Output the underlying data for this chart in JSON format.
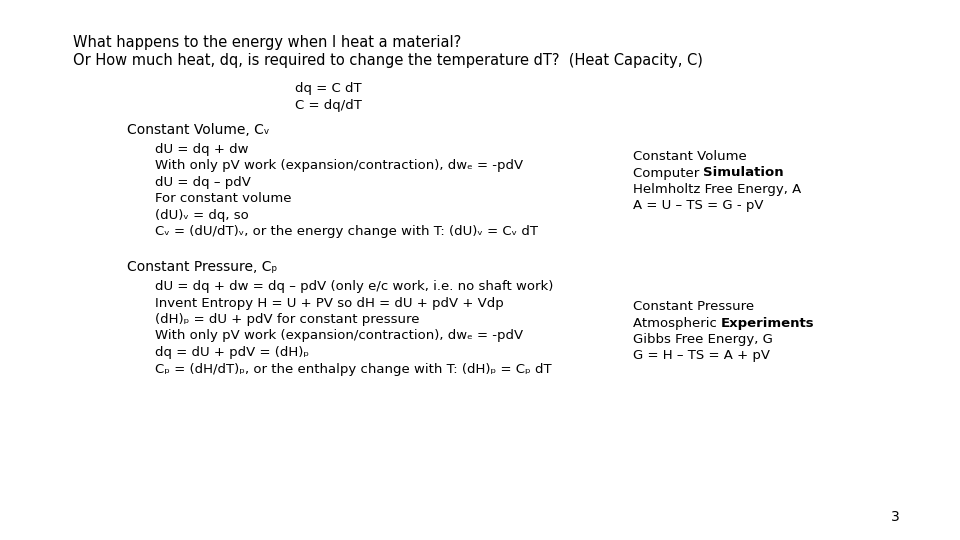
{
  "bg_color": "#ffffff",
  "title_line1": "What happens to the energy when I heat a material?",
  "title_line2": "Or How much heat, dq, is required to change the temperature dT?  (Heat Capacity, C)",
  "center_eq1": "dq = C dT",
  "center_eq2": "C = dq/dT",
  "cv_header": "Constant Volume, Cᵥ",
  "cv_lines": [
    "dU = dq + dw",
    "With only pV work (expansion/contraction), dwₑ⁣ = -pdV",
    "dU = dq – pdV",
    "For constant volume",
    "(dU)ᵥ = dq, so",
    "Cᵥ = (dU/dT)ᵥ, or the energy change with T: (dU)ᵥ = Cᵥ dT"
  ],
  "cp_header": "Constant Pressure, Cₚ",
  "cp_lines": [
    "dU = dq + dw = dq – pdV (only e/c work, i.e. no shaft work)",
    "Invent Entropy H = U + PV so dH = dU + pdV + Vdp",
    "(dH)ₚ = dU + pdV for constant pressure",
    "With only pV work (expansion/contraction), dwₑ⁣ = -pdV",
    "dq = dU + pdV = (dH)ₚ",
    "Cₚ = (dH/dT)ₚ, or the enthalpy change with T: (dH)ₚ = Cₚ dT"
  ],
  "page_number": "3",
  "font_size_title": 10.5,
  "font_size_body": 9.5,
  "font_size_header": 10.0
}
